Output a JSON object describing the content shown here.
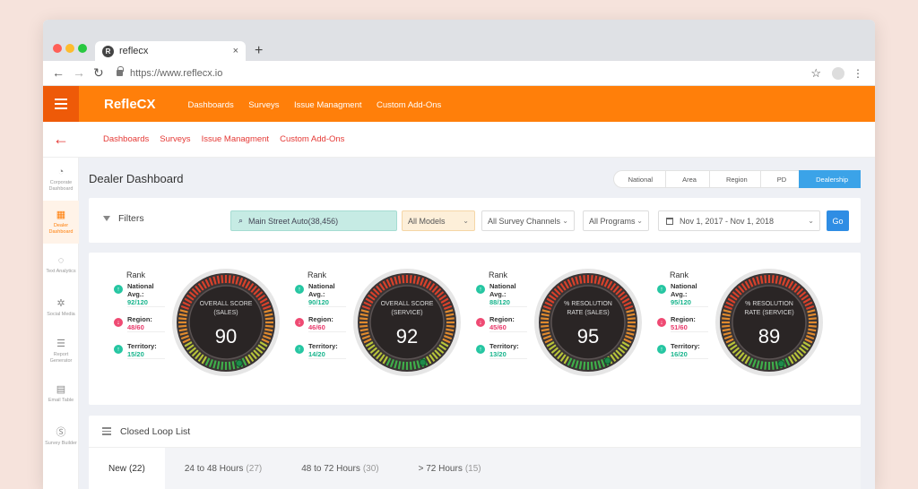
{
  "browser": {
    "tab_title": "reflecx",
    "tab_close": "×",
    "new_tab": "+",
    "url": "https://www.reflecx.io",
    "colors": {
      "close": "#ff5f57",
      "minimize": "#febc2e",
      "maximize": "#28c840"
    }
  },
  "app": {
    "brand": "RefleCX",
    "accent": "#ff7f0a",
    "nav": [
      "Dashboards",
      "Surveys",
      "Issue Managment",
      "Custom Add-Ons"
    ],
    "subnav": [
      "Dashboards",
      "Surveys",
      "Issue Managment",
      "Custom Add-Ons"
    ]
  },
  "sidebar": {
    "items": [
      {
        "icon": "speedometer-icon",
        "label": "Corporate Dashboard"
      },
      {
        "icon": "grid-icon",
        "label": "Dealer Dashboard",
        "active": true
      },
      {
        "icon": "chat-icon",
        "label": "Text Analytics"
      },
      {
        "icon": "gear-icon",
        "label": "Social Media"
      },
      {
        "icon": "list-icon",
        "label": "Report Generator"
      },
      {
        "icon": "book-icon",
        "label": "Email Table"
      },
      {
        "icon": "s-circle-icon",
        "label": "Survey Builder"
      }
    ]
  },
  "page": {
    "title": "Dealer Dashboard",
    "breadcrumb": [
      "National",
      "Area",
      "Region",
      "PD",
      "Dealership"
    ]
  },
  "filters": {
    "label": "Filters",
    "search_value": "Main Street Auto(38,456)",
    "models": "All Models",
    "channels": "All Survey Channels",
    "programs": "All Programs",
    "dates": "Nov 1, 2017 - Nov 1, 2018",
    "go": "Go"
  },
  "scores": [
    {
      "rank_title": "Rank",
      "national_label": "National Avg.:",
      "national": "92/120",
      "national_dir": "up",
      "region_label": "Region:",
      "region": "48/60",
      "region_dir": "down",
      "territory_label": "Territory:",
      "territory": "15/20",
      "territory_dir": "up",
      "line1": "OVERALL SCORE",
      "line2": "(SALES)",
      "value": 90
    },
    {
      "rank_title": "Rank",
      "national_label": "National Avg.:",
      "national": "90/120",
      "national_dir": "up",
      "region_label": "Region:",
      "region": "46/60",
      "region_dir": "down",
      "territory_label": "Territory:",
      "territory": "14/20",
      "territory_dir": "up",
      "line1": "OVERALL SCORE",
      "line2": "(SERVICE)",
      "value": 92
    },
    {
      "rank_title": "Rank",
      "national_label": "National Avg.:",
      "national": "88/120",
      "national_dir": "up",
      "region_label": "Region:",
      "region": "45/60",
      "region_dir": "down",
      "territory_label": "Territory:",
      "territory": "13/20",
      "territory_dir": "up",
      "line1": "% RESOLUTION",
      "line2": "RATE (SALES)",
      "value": 95
    },
    {
      "rank_title": "Rank",
      "national_label": "National Avg.:",
      "national": "95/120",
      "national_dir": "up",
      "region_label": "Region:",
      "region": "51/60",
      "region_dir": "down",
      "territory_label": "Territory:",
      "territory": "16/20",
      "territory_dir": "up",
      "line1": "% RESOLUTION",
      "line2": "RATE (SERVICE)",
      "value": 89
    }
  ],
  "closed_loop": {
    "title": "Closed Loop List",
    "tabs": [
      {
        "label": "New",
        "count": "(22)"
      },
      {
        "label": "24 to 48 Hours",
        "count": "(27)"
      },
      {
        "label": "48 to 72 Hours",
        "count": "(30)"
      },
      {
        "label": "> 72 Hours",
        "count": "(15)"
      }
    ]
  }
}
